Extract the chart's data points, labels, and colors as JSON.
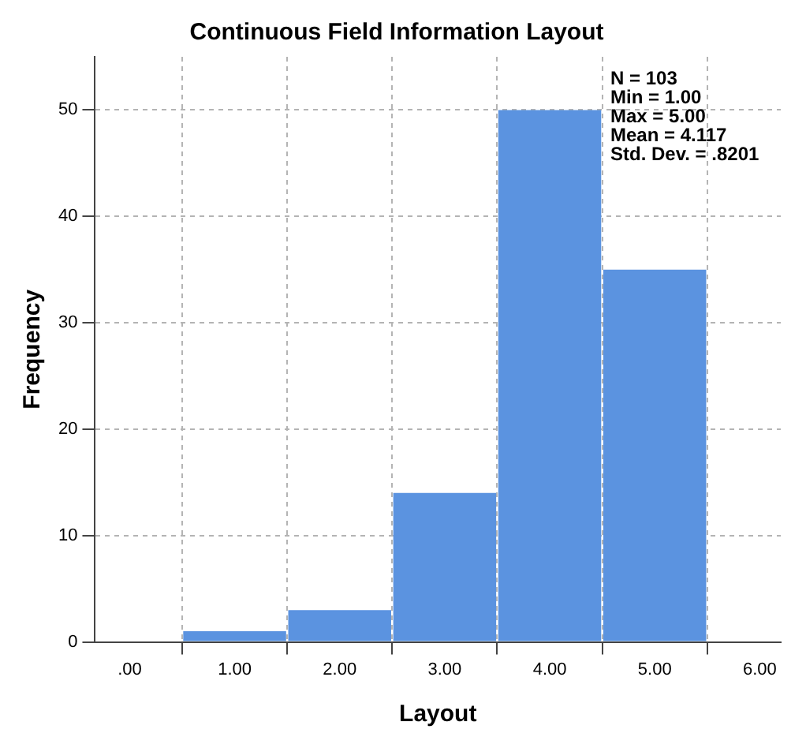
{
  "chart_data": {
    "type": "histogram",
    "title": "Continuous Field Information Layout",
    "xlabel": "Layout",
    "ylabel": "Frequency",
    "bins": [
      0.5,
      1.5,
      2.5,
      3.5,
      4.5,
      5.5
    ],
    "values": [
      1,
      3,
      14,
      50,
      35
    ],
    "color": "#5b93e0",
    "xlim": [
      -0.33,
      6.2
    ],
    "ylim": [
      0,
      55
    ],
    "xticks": [
      {
        "value": 0,
        "label": ".00"
      },
      {
        "value": 1,
        "label": "1.00"
      },
      {
        "value": 2,
        "label": "2.00"
      },
      {
        "value": 3,
        "label": "3.00"
      },
      {
        "value": 4,
        "label": "4.00"
      },
      {
        "value": 5,
        "label": "5.00"
      },
      {
        "value": 6,
        "label": "6.00"
      }
    ],
    "yticks": [
      0,
      10,
      20,
      30,
      40,
      50
    ],
    "grid": true,
    "legend": false,
    "annotations": [
      "N = 103",
      "Min = 1.00",
      "Max = 5.00",
      "Mean = 4.117",
      "Std. Dev. = .8201"
    ]
  }
}
